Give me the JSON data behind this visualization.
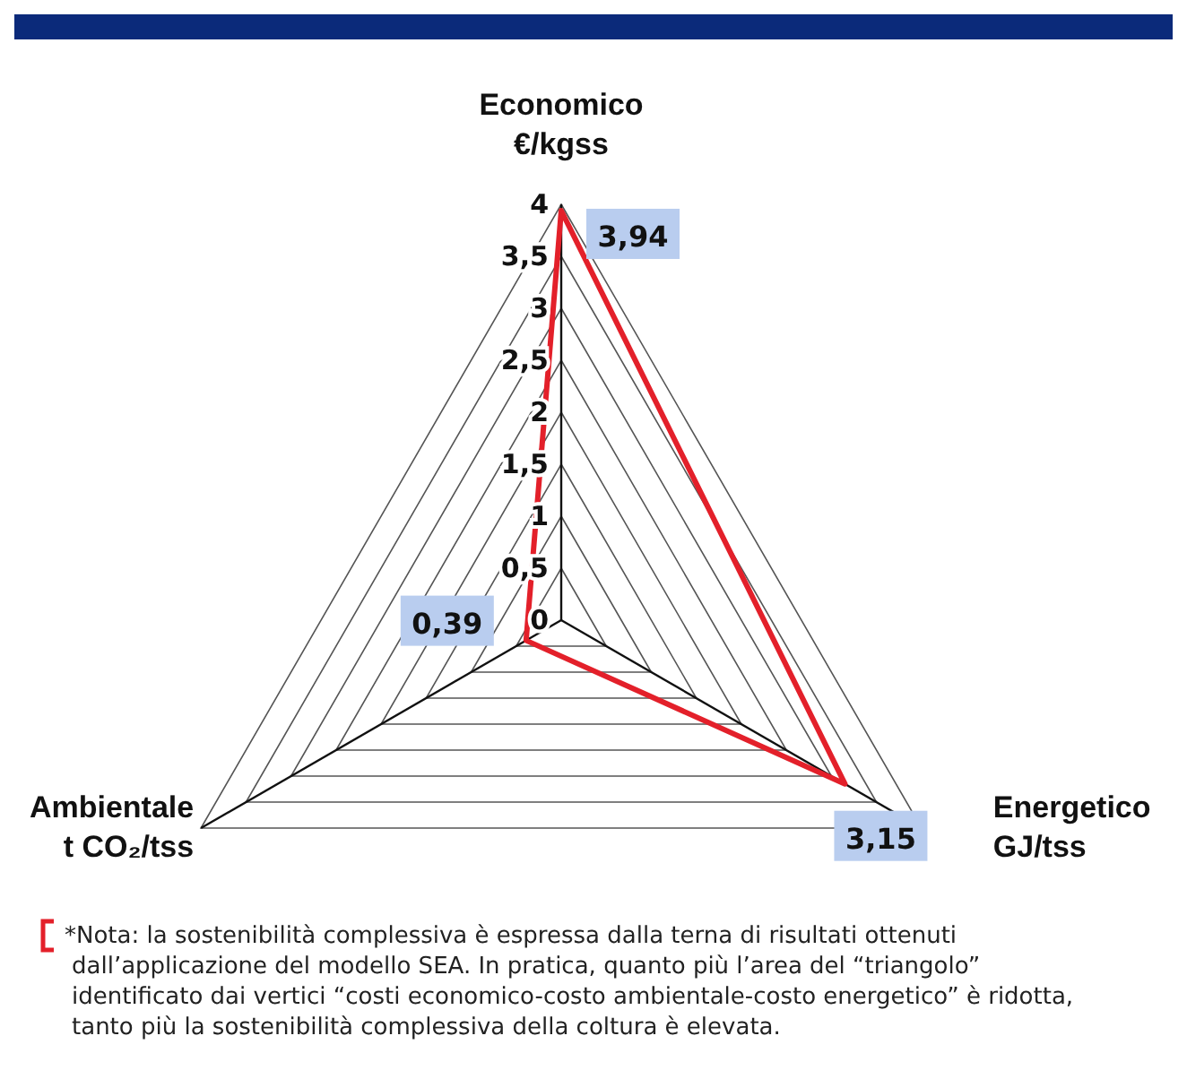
{
  "chart_data": {
    "type": "radar",
    "categories": [
      "Economico\n€/kgss",
      "Energetico\nGJ/tss",
      "Ambientale\nt CO₂/tss"
    ],
    "series": [
      {
        "color": "#e3202a",
        "values": [
          3.94,
          3.15,
          0.39
        ],
        "value_labels": [
          "3,94",
          "3,15",
          "0,39"
        ]
      }
    ],
    "ylim": [
      0,
      4
    ],
    "yticks": [
      {
        "value": 0,
        "label": "0"
      },
      {
        "value": 0.5,
        "label": "0,5"
      },
      {
        "value": 1,
        "label": "1"
      },
      {
        "value": 1.5,
        "label": "1,5"
      },
      {
        "value": 2,
        "label": "2"
      },
      {
        "value": 2.5,
        "label": "2,5"
      },
      {
        "value": 3,
        "label": "3"
      },
      {
        "value": 3.5,
        "label": "3,5"
      },
      {
        "value": 4,
        "label": "4"
      }
    ],
    "grid": true,
    "annotations": [
      "*Nota: la sostenibilità complessiva è espressa dalla terna di risultati ottenuti dall’applicazione del modello SEA. In pratica, quanto più l’area del “triangolo” identificato dai vertici “costi economico-costo ambientale-costo energetico” è ridotta, tanto più la sostenibilità complessiva della coltura è elevata."
    ]
  }
}
